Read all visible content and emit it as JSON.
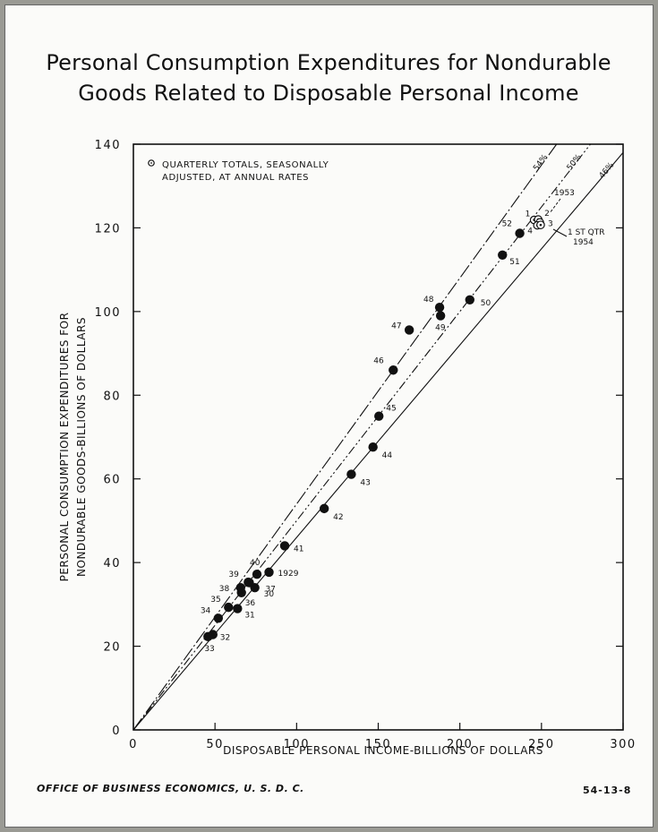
{
  "title_line1": "Personal Consumption Expenditures for Nondurable",
  "title_line2": "Goods Related to Disposable Personal Income",
  "legend_note": [
    "QUARTERLY TOTALS, SEASONALLY",
    "ADJUSTED, AT ANNUAL RATES"
  ],
  "footer": {
    "source": "OFFICE OF BUSINESS ECONOMICS, U. S. D. C.",
    "code": "54-13-8"
  },
  "chart_data": {
    "type": "scatter",
    "xlabel": "DISPOSABLE PERSONAL INCOME-BILLIONS OF DOLLARS",
    "ylabel_lines": [
      "PERSONAL CONSUMPTION EXPENDITURES FOR",
      "NONDURABLE GOODS-BILLIONS OF DOLLARS"
    ],
    "xlim": [
      0,
      300
    ],
    "ylim": [
      0,
      140
    ],
    "x_ticks": [
      0,
      50,
      100,
      150,
      200,
      250,
      300
    ],
    "y_ticks": [
      0,
      20,
      40,
      60,
      80,
      100,
      120,
      140
    ],
    "grid": false,
    "reference_lines": [
      {
        "label": "54%",
        "slope": 0.54
      },
      {
        "label": "50%",
        "slope": 0.5
      },
      {
        "label": "46%",
        "slope": 0.46
      }
    ],
    "annual_points": [
      {
        "label": "1929",
        "x": 83.1,
        "y": 37.7
      },
      {
        "label": "30",
        "x": 74.4,
        "y": 34.0
      },
      {
        "label": "31",
        "x": 63.8,
        "y": 29.0
      },
      {
        "label": "32",
        "x": 48.7,
        "y": 22.8
      },
      {
        "label": "33",
        "x": 45.7,
        "y": 22.3
      },
      {
        "label": "34",
        "x": 52.0,
        "y": 26.7
      },
      {
        "label": "35",
        "x": 58.3,
        "y": 29.3
      },
      {
        "label": "36",
        "x": 66.2,
        "y": 32.8
      },
      {
        "label": "37",
        "x": 71.0,
        "y": 35.2
      },
      {
        "label": "38",
        "x": 65.7,
        "y": 34.0
      },
      {
        "label": "39",
        "x": 70.4,
        "y": 35.3
      },
      {
        "label": "40",
        "x": 75.7,
        "y": 37.2
      },
      {
        "label": "41",
        "x": 92.7,
        "y": 44.0
      },
      {
        "label": "42",
        "x": 116.9,
        "y": 52.9
      },
      {
        "label": "43",
        "x": 133.5,
        "y": 61.1
      },
      {
        "label": "44",
        "x": 146.8,
        "y": 67.6
      },
      {
        "label": "45",
        "x": 150.4,
        "y": 75.0
      },
      {
        "label": "46",
        "x": 159.2,
        "y": 86.0
      },
      {
        "label": "47",
        "x": 169.0,
        "y": 95.6
      },
      {
        "label": "48",
        "x": 187.6,
        "y": 101.0
      },
      {
        "label": "49",
        "x": 188.2,
        "y": 99.0
      },
      {
        "label": "50",
        "x": 206.1,
        "y": 102.8
      },
      {
        "label": "51",
        "x": 226.1,
        "y": 113.5
      },
      {
        "label": "52",
        "x": 236.7,
        "y": 118.7
      }
    ],
    "quarterly_points": [
      {
        "label": "1",
        "x": 245.5,
        "y": 121.9
      },
      {
        "label": "2",
        "x": 248.0,
        "y": 122.0
      },
      {
        "label": "3",
        "x": 249.0,
        "y": 121.3
      },
      {
        "label": "4",
        "x": 247.5,
        "y": 120.6
      },
      {
        "label": "1 ST QTR 1954",
        "x": 249.5,
        "y": 120.7
      }
    ],
    "annotations": [
      "1953",
      "1 ST QTR",
      "1954"
    ]
  }
}
